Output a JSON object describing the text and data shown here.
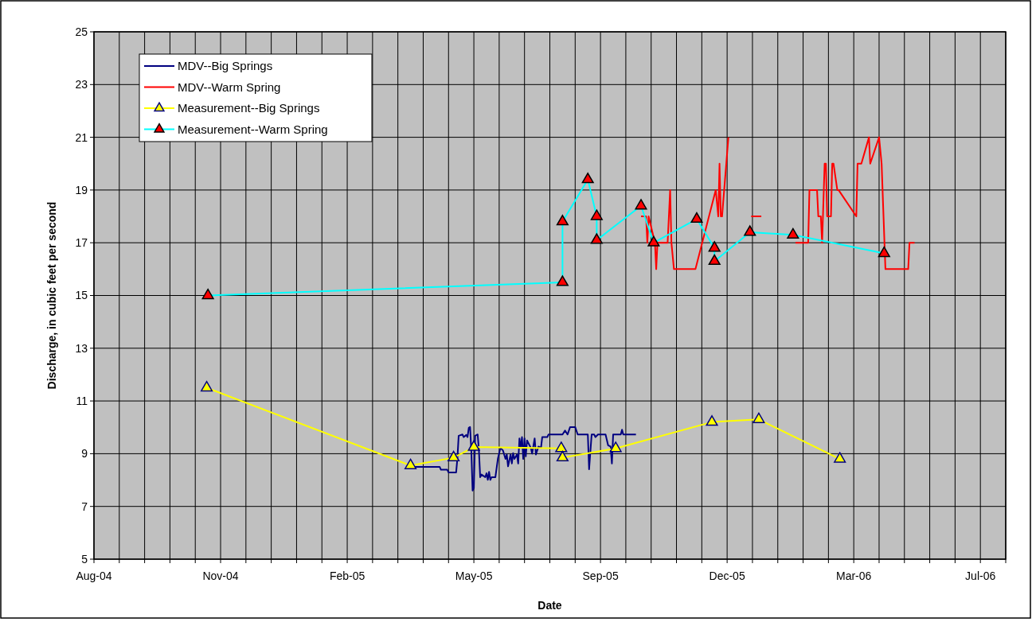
{
  "chart_data": {
    "type": "line",
    "xlabel": "Date",
    "ylabel": "Discharge, in cubic feet per second",
    "xlim": [
      "2004-08-01",
      "2006-07-22"
    ],
    "ylim": [
      5,
      25
    ],
    "xticks": [
      {
        "value": "2004-08-01",
        "label": "Aug-04"
      },
      {
        "value": "2004-08-21",
        "label": null
      },
      {
        "value": "2004-09-10",
        "label": null
      },
      {
        "value": "2004-09-30",
        "label": null
      },
      {
        "value": "2004-10-20",
        "label": null
      },
      {
        "value": "2004-11-09",
        "label": "Nov-04"
      },
      {
        "value": "2004-11-29",
        "label": null
      },
      {
        "value": "2004-12-19",
        "label": null
      },
      {
        "value": "2005-01-08",
        "label": null
      },
      {
        "value": "2005-01-28",
        "label": null
      },
      {
        "value": "2005-02-17",
        "label": "Feb-05"
      },
      {
        "value": "2005-03-09",
        "label": null
      },
      {
        "value": "2005-03-29",
        "label": null
      },
      {
        "value": "2005-04-18",
        "label": null
      },
      {
        "value": "2005-05-08",
        "label": null
      },
      {
        "value": "2005-05-28",
        "label": "May-05"
      },
      {
        "value": "2005-06-17",
        "label": null
      },
      {
        "value": "2005-07-07",
        "label": null
      },
      {
        "value": "2005-07-27",
        "label": null
      },
      {
        "value": "2005-08-16",
        "label": null
      },
      {
        "value": "2005-09-05",
        "label": "Sep-05"
      },
      {
        "value": "2005-09-25",
        "label": null
      },
      {
        "value": "2005-10-15",
        "label": null
      },
      {
        "value": "2005-11-04",
        "label": null
      },
      {
        "value": "2005-11-24",
        "label": null
      },
      {
        "value": "2005-12-14",
        "label": "Dec-05"
      },
      {
        "value": "2006-01-03",
        "label": null
      },
      {
        "value": "2006-01-23",
        "label": null
      },
      {
        "value": "2006-02-12",
        "label": null
      },
      {
        "value": "2006-03-04",
        "label": null
      },
      {
        "value": "2006-03-24",
        "label": "Mar-06"
      },
      {
        "value": "2006-04-13",
        "label": null
      },
      {
        "value": "2006-05-03",
        "label": null
      },
      {
        "value": "2006-05-23",
        "label": null
      },
      {
        "value": "2006-06-12",
        "label": null
      },
      {
        "value": "2006-07-02",
        "label": "Jul-06"
      },
      {
        "value": "2006-07-22",
        "label": null
      }
    ],
    "yticks": [
      5,
      7,
      9,
      11,
      13,
      15,
      17,
      19,
      21,
      23,
      25
    ],
    "grid": true,
    "legend": "top left",
    "line_style": "solid",
    "series": [
      {
        "name": "MDV--Big Springs",
        "color": "#000080",
        "marker": "none",
        "x": [
          "2005-04-08",
          "2005-05-01",
          "2005-05-02",
          "2005-05-07",
          "2005-05-08",
          "2005-05-14",
          "2005-05-15",
          "2005-05-16",
          "2005-05-19",
          "2005-05-20",
          "2005-05-22",
          "2005-05-23",
          "2005-05-24",
          "2005-05-25",
          "2005-05-26",
          "2005-05-27",
          "2005-05-28",
          "2005-05-29",
          "2005-05-31",
          "2005-06-01",
          "2005-06-02",
          "2005-06-03",
          "2005-06-06",
          "2005-06-07",
          "2005-06-08",
          "2005-06-09",
          "2005-06-10",
          "2005-06-11",
          "2005-06-14",
          "2005-06-16",
          "2005-06-18",
          "2005-06-20",
          "2005-06-22",
          "2005-06-23",
          "2005-06-24",
          "2005-06-26",
          "2005-06-27",
          "2005-06-28",
          "2005-06-29",
          "2005-07-01",
          "2005-07-02",
          "2005-07-03",
          "2005-07-04",
          "2005-07-05",
          "2005-07-06",
          "2005-07-07",
          "2005-07-08",
          "2005-07-09",
          "2005-07-12",
          "2005-07-13",
          "2005-07-15",
          "2005-07-16",
          "2005-07-18",
          "2005-07-20",
          "2005-07-21",
          "2005-07-25",
          "2005-07-26",
          "2005-08-06",
          "2005-08-08",
          "2005-08-10",
          "2005-08-12",
          "2005-08-16",
          "2005-08-18",
          "2005-08-26",
          "2005-08-27",
          "2005-08-29",
          "2005-08-31",
          "2005-09-01",
          "2005-09-03",
          "2005-09-09",
          "2005-09-11",
          "2005-09-13",
          "2005-09-14",
          "2005-09-15",
          "2005-09-21",
          "2005-09-22",
          "2005-09-23",
          "2005-10-03"
        ],
        "values": [
          8.5,
          8.5,
          8.39,
          8.39,
          8.29,
          8.29,
          8.82,
          9.68,
          9.73,
          9.63,
          9.71,
          9.63,
          9.98,
          10.01,
          9.12,
          7.6,
          7.7,
          9.68,
          9.73,
          9.12,
          8.11,
          8.21,
          8.11,
          8.26,
          8.01,
          8.31,
          8.01,
          8.11,
          8.11,
          8.82,
          9.22,
          9.12,
          8.8,
          8.97,
          8.52,
          8.97,
          8.63,
          9.02,
          8.8,
          8.97,
          8.63,
          9.58,
          9.22,
          9.63,
          8.8,
          9.58,
          8.9,
          9.5,
          9.22,
          9.0,
          9.58,
          8.97,
          9.27,
          9.22,
          9.63,
          9.63,
          9.73,
          9.73,
          9.88,
          9.73,
          10.01,
          10.01,
          9.73,
          9.73,
          8.41,
          9.73,
          9.73,
          9.63,
          9.73,
          9.73,
          9.32,
          9.27,
          8.63,
          9.73,
          9.73,
          9.91,
          9.73,
          9.73
        ]
      },
      {
        "name": "MDV--Warm Spring",
        "color": "#ff0000",
        "marker": "none",
        "x": [
          "2005-10-07",
          "2005-10-11",
          "2005-10-12",
          "2005-10-13",
          "2005-10-18",
          "2005-10-19",
          "2005-10-20",
          "2005-10-28",
          "2005-10-30",
          "2005-10-31",
          "2005-11-02",
          "2005-11-19",
          "2005-12-05",
          "2005-12-07",
          "2005-12-08",
          "2005-12-09",
          "2005-12-10",
          "2005-12-15",
          "2005-12-25",
          "2006-01-02",
          "2006-01-10",
          "2006-01-20",
          "2006-02-06",
          "2006-02-16",
          "2006-02-17",
          "2006-02-23",
          "2006-02-24",
          "2006-02-26",
          "2006-02-27",
          "2006-03-01",
          "2006-03-02",
          "2006-03-03",
          "2006-03-06",
          "2006-03-07",
          "2006-03-08",
          "2006-03-11",
          "2006-03-12",
          "2006-03-26",
          "2006-03-27",
          "2006-03-30",
          "2006-04-05",
          "2006-04-06",
          "2006-04-13",
          "2006-04-15",
          "2006-04-18",
          "2006-05-06",
          "2006-05-07",
          "2006-05-11"
        ],
        "values": [
          18,
          18,
          17,
          18,
          17,
          16,
          17,
          17,
          19,
          17,
          16,
          16,
          19,
          18,
          20,
          18,
          18,
          21,
          null,
          18,
          18,
          null,
          17,
          17,
          19,
          19,
          18,
          18,
          17,
          20,
          20,
          18,
          18,
          20,
          20,
          19,
          19,
          18,
          20,
          20,
          21,
          20,
          21,
          20,
          16,
          16,
          17,
          17
        ]
      },
      {
        "name": "Measurement--Big Springs",
        "color": "#ffff00",
        "marker": "triangle",
        "colors": [
          "#ffff00",
          "#ffff00",
          "#ffff00",
          "#ffff00",
          "#ffff00",
          "#ffff00",
          "#ffff00",
          "#ffff00",
          "#ffff00",
          "#ffff00"
        ],
        "x": [
          "2004-10-29",
          "2005-04-08",
          "2005-05-12",
          "2005-05-28",
          "2005-08-05",
          "2005-08-06",
          "2005-09-17",
          "2005-12-02",
          "2006-01-08",
          "2006-03-13"
        ],
        "values": [
          11.5,
          8.55,
          8.85,
          9.25,
          9.2,
          8.85,
          9.2,
          10.2,
          10.3,
          8.8
        ]
      },
      {
        "name": "Measurement--Warm Spring",
        "color": "#00ffff",
        "marker": "triangle",
        "colors": [
          "#ff0000",
          "#ff0000",
          "#ff0000",
          "#ff0000",
          "#ff0000",
          "#ff0000",
          "#ff0000",
          "#ff0000",
          "#ff0000",
          "#ff0000",
          "#ff0000",
          "#ff0000",
          "#ff0000",
          "#ff0000"
        ],
        "x": [
          "2004-10-30",
          "2005-08-06",
          "2005-08-06",
          "2005-08-26",
          "2005-09-02",
          "2005-09-02",
          "2005-10-07",
          "2005-10-17",
          "2005-11-20",
          "2005-12-04",
          "2005-12-04",
          "2006-01-01",
          "2006-02-04",
          "2006-04-17"
        ],
        "values": [
          15.0,
          15.5,
          17.8,
          19.4,
          18.0,
          17.1,
          18.4,
          17.0,
          17.9,
          16.8,
          16.3,
          17.4,
          17.3,
          16.6
        ]
      }
    ]
  }
}
